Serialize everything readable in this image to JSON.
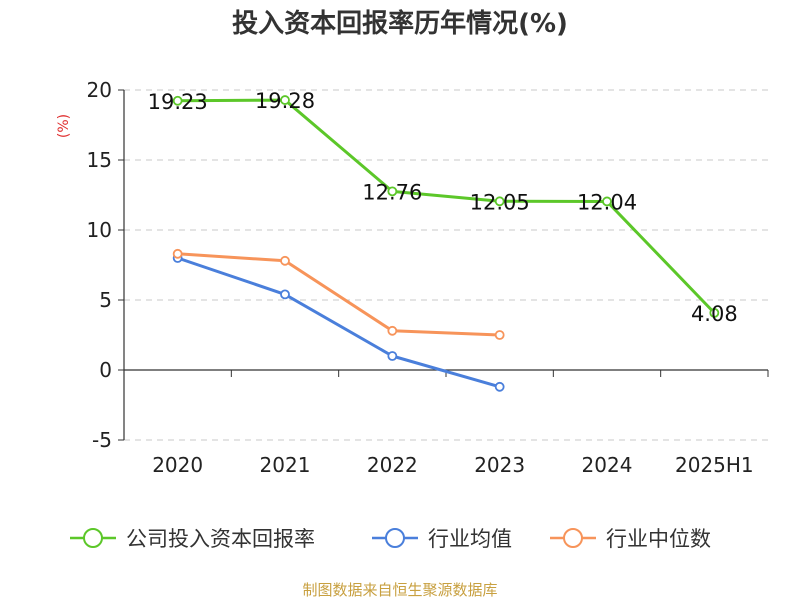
{
  "chart_data": {
    "type": "line",
    "title": "投入资本回报率历年情况(%)",
    "ylabel": "(%)",
    "xlabel": "",
    "categories": [
      "2020",
      "2021",
      "2022",
      "2023",
      "2024",
      "2025H1"
    ],
    "ylim": [
      -5,
      20
    ],
    "yticks": [
      -5,
      0,
      5,
      10,
      15,
      20
    ],
    "grid": true,
    "legend_position": "bottom",
    "series": [
      {
        "name": "公司投入资本回报率",
        "color": "#5cc729",
        "values": [
          19.23,
          19.28,
          12.76,
          12.05,
          12.04,
          4.08
        ],
        "labels": [
          "19.23",
          "19.28",
          "12.76",
          "12.05",
          "12.04",
          "4.08"
        ],
        "show_labels": true
      },
      {
        "name": "行业均值",
        "color": "#4a7fdb",
        "values": [
          8.0,
          5.4,
          1.0,
          -1.2,
          null,
          null
        ],
        "show_labels": false
      },
      {
        "name": "行业中位数",
        "color": "#f7945a",
        "values": [
          8.3,
          7.8,
          2.8,
          2.5,
          null,
          null
        ],
        "show_labels": false
      }
    ],
    "source": "制图数据来自恒生聚源数据库"
  }
}
